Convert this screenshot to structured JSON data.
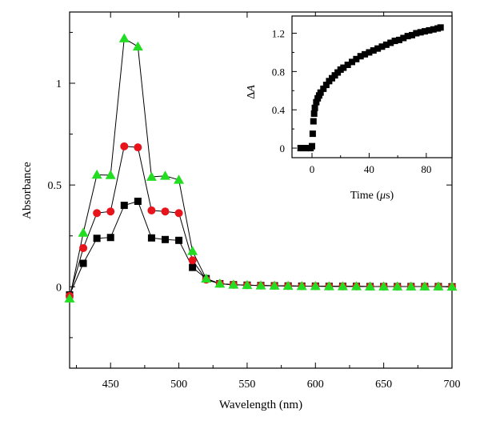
{
  "chart_data": [
    {
      "type": "line",
      "xlabel": "Wavelength (nm)",
      "ylabel": "Absorbance",
      "xlim": [
        420,
        700
      ],
      "ylim": [
        -0.4,
        1.35
      ],
      "xticks": [
        450,
        500,
        550,
        600,
        650,
        700
      ],
      "xtick_labels": [
        "450",
        "500",
        "550",
        "600",
        "650",
        "700"
      ],
      "yticks": [
        0,
        0.5,
        1
      ],
      "ytick_labels": [
        "0",
        "0.5",
        "1"
      ],
      "grid": false,
      "series": [
        {
          "marker": "square",
          "color": "#000000",
          "points": [
            [
              420,
              -0.04
            ],
            [
              430,
              0.115
            ],
            [
              440,
              0.238
            ],
            [
              450,
              0.242
            ],
            [
              460,
              0.4
            ],
            [
              470,
              0.42
            ],
            [
              480,
              0.24
            ],
            [
              490,
              0.232
            ],
            [
              500,
              0.228
            ],
            [
              510,
              0.095
            ],
            [
              520,
              0.04
            ],
            [
              530,
              0.015
            ],
            [
              540,
              0.01
            ],
            [
              550,
              0.008
            ],
            [
              560,
              0.006
            ],
            [
              570,
              0.005
            ],
            [
              580,
              0.004
            ],
            [
              590,
              0.003
            ],
            [
              600,
              0.003
            ],
            [
              610,
              0.002
            ],
            [
              620,
              0.002
            ],
            [
              630,
              0.002
            ],
            [
              640,
              0.001
            ],
            [
              650,
              0.001
            ],
            [
              660,
              0.001
            ],
            [
              670,
              0.001
            ],
            [
              680,
              0.001
            ],
            [
              690,
              0.001
            ],
            [
              700,
              0.0
            ]
          ]
        },
        {
          "marker": "circle",
          "color": "#e8141c",
          "points": [
            [
              420,
              -0.045
            ],
            [
              430,
              0.19
            ],
            [
              440,
              0.362
            ],
            [
              450,
              0.37
            ],
            [
              460,
              0.69
            ],
            [
              470,
              0.685
            ],
            [
              480,
              0.375
            ],
            [
              490,
              0.37
            ],
            [
              500,
              0.362
            ],
            [
              510,
              0.13
            ],
            [
              520,
              0.035
            ],
            [
              530,
              0.015
            ],
            [
              540,
              0.01
            ],
            [
              550,
              0.008
            ],
            [
              560,
              0.006
            ],
            [
              570,
              0.005
            ],
            [
              580,
              0.004
            ],
            [
              590,
              0.003
            ],
            [
              600,
              0.003
            ],
            [
              610,
              0.002
            ],
            [
              620,
              0.002
            ],
            [
              630,
              0.002
            ],
            [
              640,
              0.001
            ],
            [
              650,
              0.001
            ],
            [
              660,
              0.001
            ],
            [
              670,
              0.001
            ],
            [
              680,
              0.001
            ],
            [
              690,
              0.001
            ],
            [
              700,
              0.0
            ]
          ]
        },
        {
          "marker": "triangle",
          "color": "#22dd22",
          "points": [
            [
              420,
              -0.058
            ],
            [
              430,
              0.265
            ],
            [
              440,
              0.55
            ],
            [
              450,
              0.548
            ],
            [
              460,
              1.22
            ],
            [
              470,
              1.18
            ],
            [
              480,
              0.54
            ],
            [
              490,
              0.545
            ],
            [
              500,
              0.525
            ],
            [
              510,
              0.175
            ],
            [
              520,
              0.04
            ],
            [
              530,
              0.015
            ],
            [
              540,
              0.01
            ],
            [
              550,
              0.008
            ],
            [
              560,
              0.006
            ],
            [
              570,
              0.005
            ],
            [
              580,
              0.004
            ],
            [
              590,
              0.003
            ],
            [
              600,
              0.003
            ],
            [
              610,
              0.002
            ],
            [
              620,
              0.002
            ],
            [
              630,
              0.002
            ],
            [
              640,
              0.001
            ],
            [
              650,
              0.001
            ],
            [
              660,
              0.001
            ],
            [
              670,
              0.001
            ],
            [
              680,
              0.001
            ],
            [
              690,
              0.001
            ],
            [
              700,
              0.0
            ]
          ]
        }
      ]
    },
    {
      "type": "scatter",
      "xlabel_text": "Time (",
      "xlabel_symbol": "μ",
      "xlabel_unit": "s)",
      "ylabel_symbol": "Δ",
      "ylabel_var": "A",
      "xlim": [
        -14,
        98
      ],
      "ylim": [
        -0.1,
        1.38
      ],
      "xticks": [
        0,
        40,
        80
      ],
      "xtick_labels": [
        "0",
        "40",
        "80"
      ],
      "yticks": [
        0,
        0.4,
        0.8,
        1.2
      ],
      "ytick_labels": [
        "0",
        "0.4",
        "0.8",
        "1.2"
      ],
      "marker": "square",
      "color": "#000000",
      "points": [
        [
          -8,
          0.0
        ],
        [
          -6,
          0.0
        ],
        [
          -4,
          0.0
        ],
        [
          -2,
          0.0
        ],
        [
          -1,
          0.0
        ],
        [
          0,
          0.02
        ],
        [
          0.5,
          0.15
        ],
        [
          1,
          0.28
        ],
        [
          1.5,
          0.36
        ],
        [
          2,
          0.42
        ],
        [
          3,
          0.48
        ],
        [
          4,
          0.52
        ],
        [
          5,
          0.55
        ],
        [
          6,
          0.58
        ],
        [
          8,
          0.62
        ],
        [
          10,
          0.66
        ],
        [
          12,
          0.7
        ],
        [
          14,
          0.73
        ],
        [
          16,
          0.76
        ],
        [
          18,
          0.79
        ],
        [
          20,
          0.82
        ],
        [
          22,
          0.84
        ],
        [
          25,
          0.87
        ],
        [
          28,
          0.9
        ],
        [
          31,
          0.93
        ],
        [
          34,
          0.96
        ],
        [
          37,
          0.98
        ],
        [
          40,
          1.0
        ],
        [
          43,
          1.02
        ],
        [
          46,
          1.04
        ],
        [
          49,
          1.06
        ],
        [
          52,
          1.08
        ],
        [
          55,
          1.1
        ],
        [
          58,
          1.12
        ],
        [
          61,
          1.13
        ],
        [
          64,
          1.15
        ],
        [
          67,
          1.17
        ],
        [
          70,
          1.18
        ],
        [
          73,
          1.2
        ],
        [
          76,
          1.21
        ],
        [
          79,
          1.22
        ],
        [
          82,
          1.23
        ],
        [
          85,
          1.24
        ],
        [
          88,
          1.25
        ],
        [
          90,
          1.26
        ]
      ]
    }
  ]
}
